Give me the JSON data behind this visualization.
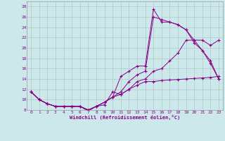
{
  "xlabel": "Windchill (Refroidissement éolien,°C)",
  "bg_color": "#cde8ea",
  "grid_color": "#b0c8ca",
  "line_color": "#880088",
  "xlim": [
    -0.5,
    23.5
  ],
  "ylim": [
    8,
    29
  ],
  "xticks": [
    0,
    1,
    2,
    3,
    4,
    5,
    6,
    7,
    8,
    9,
    10,
    11,
    12,
    13,
    14,
    15,
    16,
    17,
    18,
    19,
    20,
    21,
    22,
    23
  ],
  "yticks": [
    8,
    10,
    12,
    14,
    16,
    18,
    20,
    22,
    24,
    26,
    28
  ],
  "line1_x": [
    0,
    1,
    2,
    3,
    4,
    5,
    6,
    7,
    8,
    9,
    10,
    11,
    12,
    13,
    14,
    15,
    16,
    17,
    18,
    19,
    20,
    21,
    22,
    23
  ],
  "line1_y": [
    11.5,
    10.0,
    9.2,
    8.7,
    8.7,
    8.7,
    8.7,
    8.0,
    8.7,
    9.5,
    10.5,
    14.5,
    15.5,
    16.5,
    16.5,
    27.5,
    25.0,
    25.0,
    24.5,
    23.5,
    21.0,
    19.5,
    17.0,
    14.0
  ],
  "line2_x": [
    0,
    1,
    2,
    3,
    4,
    5,
    6,
    7,
    8,
    9,
    10,
    11,
    12,
    13,
    14,
    15,
    16,
    17,
    18,
    19,
    20,
    21,
    22,
    23
  ],
  "line2_y": [
    11.5,
    10.0,
    9.2,
    8.7,
    8.7,
    8.7,
    8.7,
    8.0,
    8.7,
    9.5,
    10.5,
    11.5,
    13.5,
    14.8,
    15.5,
    26.0,
    25.5,
    25.0,
    24.5,
    23.5,
    21.5,
    19.5,
    17.5,
    14.0
  ],
  "line3_x": [
    0,
    1,
    2,
    3,
    4,
    5,
    6,
    7,
    8,
    9,
    10,
    11,
    12,
    13,
    14,
    15,
    16,
    17,
    18,
    19,
    20,
    21,
    22,
    23
  ],
  "line3_y": [
    11.5,
    10.0,
    9.2,
    8.7,
    8.7,
    8.7,
    8.7,
    8.0,
    8.7,
    9.5,
    10.5,
    11.0,
    12.0,
    13.5,
    14.0,
    15.5,
    16.0,
    17.5,
    19.0,
    21.5,
    21.5,
    21.5,
    20.5,
    21.5
  ],
  "line4_x": [
    0,
    1,
    2,
    3,
    4,
    5,
    6,
    7,
    8,
    9,
    10,
    11,
    12,
    13,
    14,
    15,
    16,
    17,
    18,
    19,
    20,
    21,
    22,
    23
  ],
  "line4_y": [
    11.5,
    10.0,
    9.2,
    8.7,
    8.7,
    8.7,
    8.7,
    7.8,
    8.7,
    9.0,
    11.5,
    11.0,
    12.0,
    12.8,
    13.5,
    13.5,
    13.7,
    13.8,
    13.9,
    14.0,
    14.1,
    14.2,
    14.3,
    14.5
  ]
}
